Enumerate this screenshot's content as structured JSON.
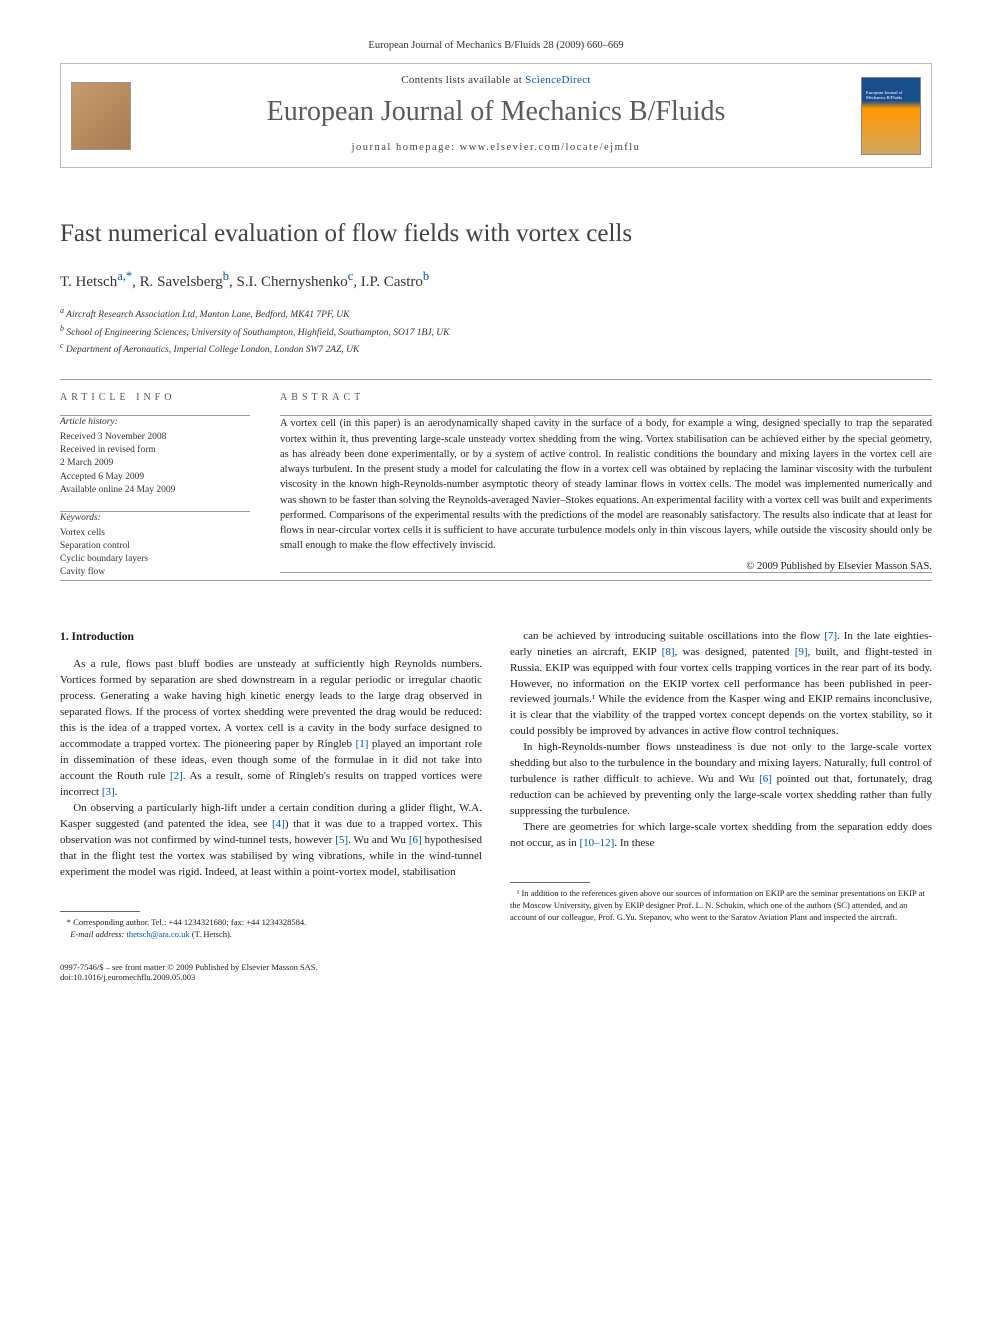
{
  "header": {
    "citation": "European Journal of Mechanics B/Fluids 28 (2009) 660–669",
    "contents_label": "Contents lists available at",
    "contents_link": "ScienceDirect",
    "journal_name": "European Journal of Mechanics B/Fluids",
    "homepage_label": "journal homepage:",
    "homepage_url": "www.elsevier.com/locate/ejmflu",
    "cover_text": "European Journal of Mechanics\nB/Fluids"
  },
  "title": "Fast numerical evaluation of flow fields with vortex cells",
  "authors": [
    {
      "name": "T. Hetsch",
      "affil": "a,*"
    },
    {
      "name": "R. Savelsberg",
      "affil": "b"
    },
    {
      "name": "S.I. Chernyshenko",
      "affil": "c"
    },
    {
      "name": "I.P. Castro",
      "affil": "b"
    }
  ],
  "affiliations": [
    {
      "sup": "a",
      "text": "Aircraft Research Association Ltd, Manton Lane, Bedford, MK41 7PF, UK"
    },
    {
      "sup": "b",
      "text": "School of Engineering Sciences, University of Southampton, Highfield, Southampton, SO17 1BJ, UK"
    },
    {
      "sup": "c",
      "text": "Department of Aeronautics, Imperial College London, London SW7 2AZ, UK"
    }
  ],
  "article_info": {
    "heading": "ARTICLE INFO",
    "history_label": "Article history:",
    "history": [
      "Received 3 November 2008",
      "Received in revised form",
      "2 March 2009",
      "Accepted 6 May 2009",
      "Available online 24 May 2009"
    ],
    "keywords_label": "Keywords:",
    "keywords": [
      "Vortex cells",
      "Separation control",
      "Cyclic boundary layers",
      "Cavity flow"
    ]
  },
  "abstract": {
    "heading": "ABSTRACT",
    "text": "A vortex cell (in this paper) is an aerodynamically shaped cavity in the surface of a body, for example a wing, designed specially to trap the separated vortex within it, thus preventing large-scale unsteady vortex shedding from the wing. Vortex stabilisation can be achieved either by the special geometry, as has already been done experimentally, or by a system of active control. In realistic conditions the boundary and mixing layers in the vortex cell are always turbulent. In the present study a model for calculating the flow in a vortex cell was obtained by replacing the laminar viscosity with the turbulent viscosity in the known high-Reynolds-number asymptotic theory of steady laminar flows in vortex cells. The model was implemented numerically and was shown to be faster than solving the Reynolds-averaged Navier–Stokes equations. An experimental facility with a vortex cell was built and experiments performed. Comparisons of the experimental results with the predictions of the model are reasonably satisfactory. The results also indicate that at least for flows in near-circular vortex cells it is sufficient to have accurate turbulence models only in thin viscous layers, while outside the viscosity should only be small enough to make the flow effectively inviscid.",
    "copyright": "© 2009 Published by Elsevier Masson SAS."
  },
  "body": {
    "section_number": "1.",
    "section_title": "Introduction",
    "col1_p1": "As a rule, flows past bluff bodies are unsteady at sufficiently high Reynolds numbers. Vortices formed by separation are shed downstream in a regular periodic or irregular chaotic process. Generating a wake having high kinetic energy leads to the large drag observed in separated flows. If the process of vortex shedding were prevented the drag would be reduced: this is the idea of a trapped vortex. A vortex cell is a cavity in the body surface designed to accommodate a trapped vortex. The pioneering paper by Ringleb [1] played an important role in dissemination of these ideas, even though some of the formulae in it did not take into account the Routh rule [2]. As a result, some of Ringleb's results on trapped vortices were incorrect [3].",
    "col1_p2": "On observing a particularly high-lift under a certain condition during a glider flight, W.A. Kasper suggested (and patented the idea, see [4]) that it was due to a trapped vortex. This observation was not confirmed by wind-tunnel tests, however [5]. Wu and Wu [6] hypothesised that in the flight test the vortex was stabilised by wing vibrations, while in the wind-tunnel experiment the model was rigid. Indeed, at least within a point-vortex model, stabilisation",
    "col2_p1": "can be achieved by introducing suitable oscillations into the flow [7]. In the late eighties-early nineties an aircraft, EKIP [8], was designed, patented [9], built, and flight-tested in Russia. EKIP was equipped with four vortex cells trapping vortices in the rear part of its body. However, no information on the EKIP vortex cell performance has been published in peer-reviewed journals.¹ While the evidence from the Kasper wing and EKIP remains inconclusive, it is clear that the viability of the trapped vortex concept depends on the vortex stability, so it could possibly be improved by advances in active flow control techniques.",
    "col2_p2": "In high-Reynolds-number flows unsteadiness is due not only to the large-scale vortex shedding but also to the turbulence in the boundary and mixing layers. Naturally, full control of turbulence is rather difficult to achieve. Wu and Wu [6] pointed out that, fortunately, drag reduction can be achieved by preventing only the large-scale vortex shedding rather than fully suppressing the turbulence.",
    "col2_p3": "There are geometries for which large-scale vortex shedding from the separation eddy does not occur, as in [10–12]. In these"
  },
  "footnotes": {
    "corresponding": "* Corresponding author. Tel.: +44 1234321680; fax: +44 1234328584.",
    "email_label": "E-mail address:",
    "email": "thetsch@ara.co.uk",
    "email_name": "(T. Hetsch).",
    "ekip": "¹ In addition to the references given above our sources of information on EKIP are the seminar presentations on EKIP at the Moscow University, given by EKIP designer Prof. L. N. Schukin, which one of the authors (SC) attended, and an account of our colleague, Prof. G.Yu. Stepanov, who went to the Saratov Aviation Plant and inspected the aircraft."
  },
  "bottom": {
    "line1": "0997-7546/$ – see front matter © 2009 Published by Elsevier Masson SAS.",
    "line2": "doi:10.1016/j.euromechflu.2009.05.003"
  },
  "refs": [
    "[1]",
    "[2]",
    "[3]",
    "[4]",
    "[5]",
    "[6]",
    "[7]",
    "[8]",
    "[9]",
    "[10–12]"
  ]
}
